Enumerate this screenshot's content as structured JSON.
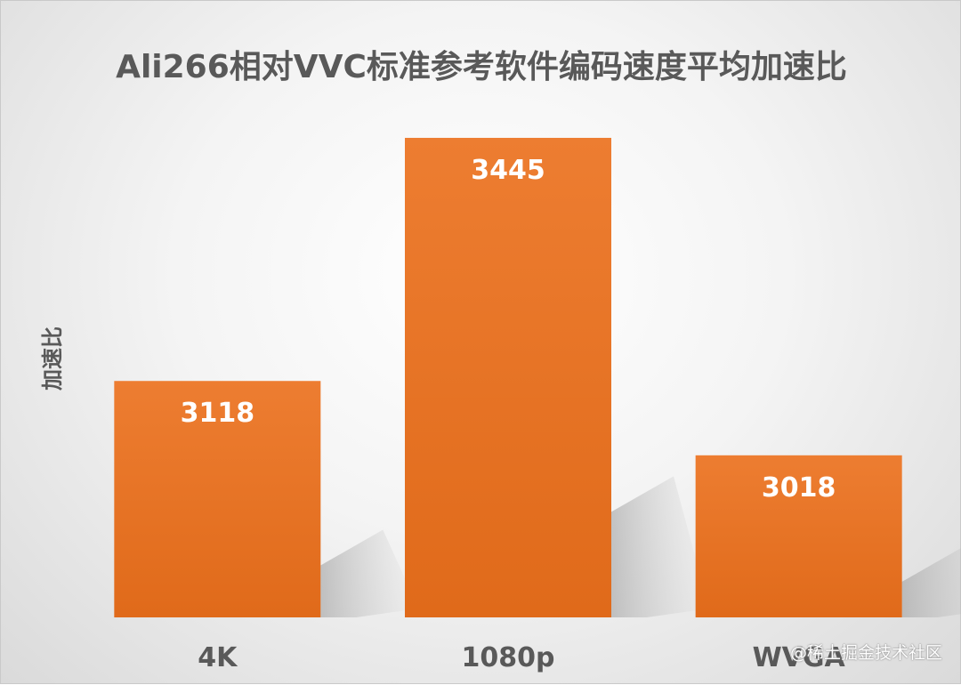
{
  "chart_data": {
    "type": "bar",
    "title": "Ali266相对VVC标准参考软件编码速度平均加速比",
    "xlabel": "",
    "ylabel": "加速比",
    "categories": [
      "4K",
      "1080p",
      "WVGA"
    ],
    "values": [
      3118,
      3445,
      3018
    ],
    "data_labels": [
      "3118",
      "3445",
      "3018"
    ],
    "ylim": [
      2800,
      3500
    ],
    "grid": false,
    "legend": "none",
    "bar_color": "#ed7d31",
    "bar_color_dark": "#e06a1a"
  },
  "watermark": "@稀土掘金技术社区"
}
